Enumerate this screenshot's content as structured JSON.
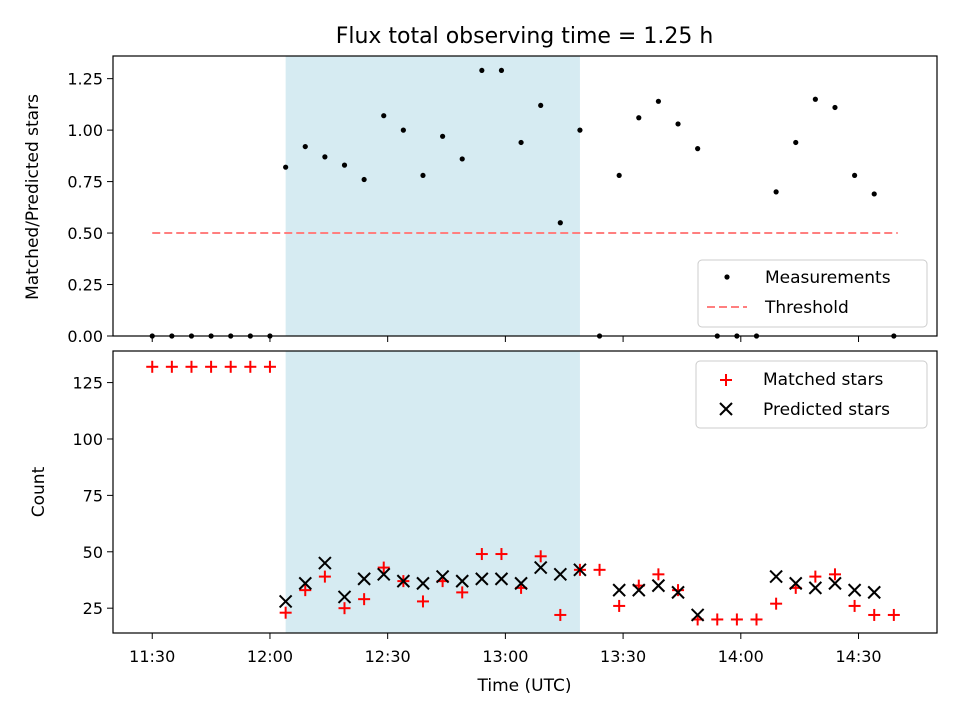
{
  "chart_data": [
    {
      "type": "scatter",
      "title": "Flux total observing time = 1.25 h",
      "xlabel": "",
      "ylabel": "Matched/Predicted stars",
      "xlim": [
        "11:20",
        "14:50"
      ],
      "ylim": [
        0,
        1.36
      ],
      "yticks": [
        "0.00",
        "0.25",
        "0.50",
        "0.75",
        "1.00",
        "1.25"
      ],
      "grid": false,
      "legend_position": "lower right",
      "shaded_interval": {
        "start": "12:04",
        "end": "13:19",
        "color": "#add8e6"
      },
      "threshold": {
        "label": "Threshold",
        "value": 0.5,
        "x_start": "11:30",
        "x_end": "14:40",
        "color": "#ff7f7f"
      },
      "series": [
        {
          "name": "Measurements",
          "marker": "dot",
          "color": "#000000",
          "points": [
            [
              "11:30",
              0.0
            ],
            [
              "11:35",
              0.0
            ],
            [
              "11:40",
              0.0
            ],
            [
              "11:45",
              0.0
            ],
            [
              "11:50",
              0.0
            ],
            [
              "11:55",
              0.0
            ],
            [
              "12:00",
              0.0
            ],
            [
              "12:04",
              0.82
            ],
            [
              "12:09",
              0.92
            ],
            [
              "12:14",
              0.87
            ],
            [
              "12:19",
              0.83
            ],
            [
              "12:24",
              0.76
            ],
            [
              "12:29",
              1.07
            ],
            [
              "12:34",
              1.0
            ],
            [
              "12:39",
              0.78
            ],
            [
              "12:44",
              0.97
            ],
            [
              "12:49",
              0.86
            ],
            [
              "12:54",
              1.29
            ],
            [
              "12:59",
              1.29
            ],
            [
              "13:04",
              0.94
            ],
            [
              "13:09",
              1.12
            ],
            [
              "13:14",
              0.55
            ],
            [
              "13:19",
              1.0
            ],
            [
              "13:24",
              0.0
            ],
            [
              "13:29",
              0.78
            ],
            [
              "13:34",
              1.06
            ],
            [
              "13:39",
              1.14
            ],
            [
              "13:44",
              1.03
            ],
            [
              "13:49",
              0.91
            ],
            [
              "13:54",
              0.0
            ],
            [
              "13:59",
              0.0
            ],
            [
              "14:04",
              0.0
            ],
            [
              "14:09",
              0.7
            ],
            [
              "14:14",
              0.94
            ],
            [
              "14:19",
              1.15
            ],
            [
              "14:24",
              1.11
            ],
            [
              "14:29",
              0.78
            ],
            [
              "14:34",
              0.69
            ],
            [
              "14:39",
              0.0
            ]
          ]
        }
      ]
    },
    {
      "type": "scatter",
      "title": "",
      "xlabel": "Time (UTC)",
      "ylabel": "Count",
      "xlim": [
        "11:20",
        "14:50"
      ],
      "ylim": [
        14,
        139
      ],
      "yticks": [
        "25",
        "50",
        "75",
        "100",
        "125"
      ],
      "xticks": [
        "11:30",
        "12:00",
        "12:30",
        "13:00",
        "13:30",
        "14:00",
        "14:30"
      ],
      "grid": false,
      "legend_position": "upper right",
      "shaded_interval": {
        "start": "12:04",
        "end": "13:19",
        "color": "#add8e6"
      },
      "series": [
        {
          "name": "Matched stars",
          "marker": "plus",
          "color": "#ff0000",
          "points": [
            [
              "11:30",
              132
            ],
            [
              "11:35",
              132
            ],
            [
              "11:40",
              132
            ],
            [
              "11:45",
              132
            ],
            [
              "11:50",
              132
            ],
            [
              "11:55",
              132
            ],
            [
              "12:00",
              132
            ],
            [
              "12:04",
              23
            ],
            [
              "12:09",
              33
            ],
            [
              "12:14",
              39
            ],
            [
              "12:19",
              25
            ],
            [
              "12:24",
              29
            ],
            [
              "12:29",
              43
            ],
            [
              "12:34",
              37
            ],
            [
              "12:39",
              28
            ],
            [
              "12:44",
              37
            ],
            [
              "12:49",
              32
            ],
            [
              "12:54",
              49
            ],
            [
              "12:59",
              49
            ],
            [
              "13:04",
              34
            ],
            [
              "13:09",
              48
            ],
            [
              "13:14",
              22
            ],
            [
              "13:19",
              42
            ],
            [
              "13:24",
              42
            ],
            [
              "13:29",
              26
            ],
            [
              "13:34",
              35
            ],
            [
              "13:39",
              40
            ],
            [
              "13:44",
              33
            ],
            [
              "13:49",
              20
            ],
            [
              "13:54",
              20
            ],
            [
              "13:59",
              20
            ],
            [
              "14:04",
              20
            ],
            [
              "14:09",
              27
            ],
            [
              "14:14",
              34
            ],
            [
              "14:19",
              39
            ],
            [
              "14:24",
              40
            ],
            [
              "14:29",
              26
            ],
            [
              "14:34",
              22
            ],
            [
              "14:39",
              22
            ]
          ]
        },
        {
          "name": "Predicted stars",
          "marker": "x",
          "color": "#000000",
          "points": [
            [
              "12:04",
              28
            ],
            [
              "12:09",
              36
            ],
            [
              "12:14",
              45
            ],
            [
              "12:19",
              30
            ],
            [
              "12:24",
              38
            ],
            [
              "12:29",
              40
            ],
            [
              "12:34",
              37
            ],
            [
              "12:39",
              36
            ],
            [
              "12:44",
              39
            ],
            [
              "12:49",
              37
            ],
            [
              "12:54",
              38
            ],
            [
              "12:59",
              38
            ],
            [
              "13:04",
              36
            ],
            [
              "13:09",
              43
            ],
            [
              "13:14",
              40
            ],
            [
              "13:19",
              42
            ],
            [
              "13:29",
              33
            ],
            [
              "13:34",
              33
            ],
            [
              "13:39",
              35
            ],
            [
              "13:44",
              32
            ],
            [
              "13:49",
              22
            ],
            [
              "14:09",
              39
            ],
            [
              "14:14",
              36
            ],
            [
              "14:19",
              34
            ],
            [
              "14:24",
              36
            ],
            [
              "14:29",
              33
            ],
            [
              "14:34",
              32
            ]
          ]
        }
      ]
    }
  ]
}
